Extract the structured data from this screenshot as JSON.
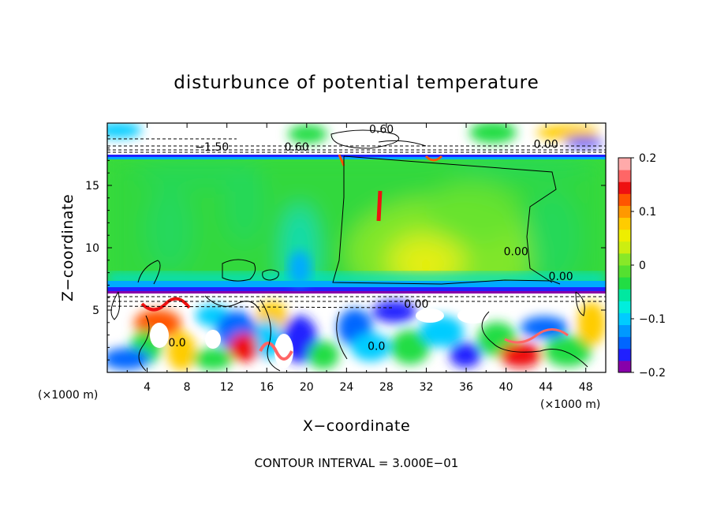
{
  "chart_data": {
    "type": "heatmap",
    "title": "disturbunce of potential temperature",
    "xlabel": "X−coordinate",
    "ylabel": "Z−coordinate",
    "x_unit_left": "(×1000 m)",
    "x_unit_right": "(×1000 m)",
    "xlim": [
      0,
      50
    ],
    "ylim": [
      0,
      20
    ],
    "x_ticks": [
      4,
      8,
      12,
      16,
      20,
      24,
      28,
      32,
      36,
      40,
      44,
      48
    ],
    "x_tick_labels": [
      "4",
      "8",
      "12",
      "16",
      "20",
      "24",
      "28",
      "32",
      "36",
      "40",
      "44",
      "48"
    ],
    "y_ticks": [
      5,
      10,
      15
    ],
    "y_tick_labels": [
      "5",
      "10",
      "15"
    ],
    "colorbar": {
      "range": [
        -0.2,
        0.2
      ],
      "ticks": [
        0.2,
        0.1,
        0,
        -0.1,
        -0.2
      ],
      "tick_labels": [
        "0.2",
        "0.1",
        "0",
        "−0.1",
        "−0.2"
      ],
      "colors": [
        "#8800aa",
        "#2020ff",
        "#0066ff",
        "#0099ff",
        "#00ccff",
        "#00eedd",
        "#00e8a0",
        "#22dd44",
        "#55e030",
        "#88e828",
        "#ccee11",
        "#eeee00",
        "#ffcc00",
        "#ff9900",
        "#ff5500",
        "#ee1111",
        "#ff6666",
        "#ffaaaa"
      ]
    },
    "contour_labels": [
      {
        "text": "0.60",
        "x": 27.5,
        "y": 19.2
      },
      {
        "text": "0.60",
        "x": 19.0,
        "y": 17.8
      },
      {
        "text": "−1.50",
        "x": 10.5,
        "y": 17.8
      },
      {
        "text": "0.00",
        "x": 44.0,
        "y": 18.0
      },
      {
        "text": "0.00",
        "x": 45.5,
        "y": 7.4
      },
      {
        "text": "0.00",
        "x": 41.0,
        "y": 9.4
      },
      {
        "text": "0.00",
        "x": 31.0,
        "y": 5.2
      },
      {
        "text": "0.0",
        "x": 27.0,
        "y": 1.8
      },
      {
        "text": "0.0",
        "x": 7.0,
        "y": 2.1
      }
    ],
    "grid": false,
    "legend": "colorbar right"
  },
  "footer": "CONTOUR INTERVAL = 3.000E−01"
}
